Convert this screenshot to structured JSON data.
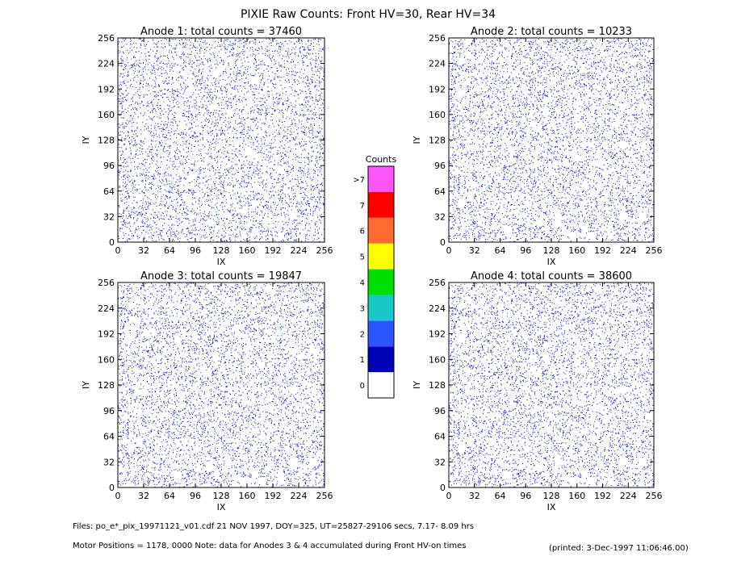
{
  "title": "PIXIE Raw Counts:  Front HV=30, Rear HV=34",
  "chart_data": [
    {
      "type": "heatmap",
      "title": "Anode 1: total counts = 37460",
      "x_label": "IX",
      "y_label": "IY",
      "xlim": [
        0,
        256
      ],
      "ylim": [
        0,
        256
      ],
      "xticks": [
        0,
        32,
        64,
        96,
        128,
        160,
        192,
        224,
        256
      ],
      "yticks": [
        0,
        32,
        64,
        96,
        128,
        160,
        192,
        224,
        256
      ]
    },
    {
      "type": "heatmap",
      "title": "Anode 2: total counts = 10233",
      "x_label": "IX",
      "y_label": "IY",
      "xlim": [
        0,
        256
      ],
      "ylim": [
        0,
        256
      ],
      "xticks": [
        0,
        32,
        64,
        96,
        128,
        160,
        192,
        224,
        256
      ],
      "yticks": [
        0,
        32,
        64,
        96,
        128,
        160,
        192,
        224,
        256
      ]
    },
    {
      "type": "heatmap",
      "title": "Anode 3: total counts = 19847",
      "x_label": "IX",
      "y_label": "IY",
      "xlim": [
        0,
        256
      ],
      "ylim": [
        0,
        256
      ],
      "xticks": [
        0,
        32,
        64,
        96,
        128,
        160,
        192,
        224,
        256
      ],
      "yticks": [
        0,
        32,
        64,
        96,
        128,
        160,
        192,
        224,
        256
      ]
    },
    {
      "type": "heatmap",
      "title": "Anode 4: total counts = 38600",
      "x_label": "IX",
      "y_label": "IY",
      "xlim": [
        0,
        256
      ],
      "ylim": [
        0,
        256
      ],
      "xticks": [
        0,
        32,
        64,
        96,
        128,
        160,
        192,
        224,
        256
      ],
      "yticks": [
        0,
        32,
        64,
        96,
        128,
        160,
        192,
        224,
        256
      ]
    }
  ],
  "colorbar": {
    "title": "Counts",
    "levels": [
      {
        "label": "0",
        "color": "#ffffff"
      },
      {
        "label": "1",
        "color": "#0000b4"
      },
      {
        "label": "2",
        "color": "#2e54ff"
      },
      {
        "label": "3",
        "color": "#19c8c8"
      },
      {
        "label": "4",
        "color": "#00e000"
      },
      {
        "label": "5",
        "color": "#ffff00"
      },
      {
        "label": "6",
        "color": "#ff6a32"
      },
      {
        "label": "7",
        "color": "#ff0000"
      },
      {
        "label": ">7",
        "color": "#ff55ff"
      }
    ]
  },
  "footer": {
    "files": "Files: po_e*_pix_19971121_v01.cdf   21 NOV 1997, DOY=325, UT=25827-29106 secs,  7.17- 8.09 hrs",
    "motor": "Motor Positions = 1178, 0000   Note: data for Anodes 3 & 4 accumulated during Front HV-on times",
    "printed": "(printed:  3-Dec-1997 11:06:46.00)"
  }
}
